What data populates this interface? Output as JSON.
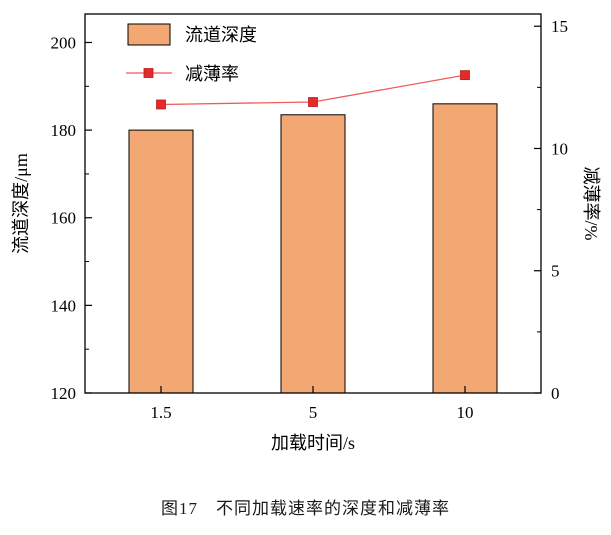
{
  "figure": {
    "caption": "图17　不同加载速率的深度和减薄率"
  },
  "chart_data": {
    "type": "bar",
    "title": "",
    "categories": [
      "1.5",
      "5",
      "10"
    ],
    "series": [
      {
        "name": "流道深度",
        "type": "bar",
        "axis": "left",
        "values": [
          180,
          183.5,
          186
        ],
        "fill": "#F3A873",
        "stroke": "#000000"
      },
      {
        "name": "减薄率",
        "type": "line",
        "axis": "right",
        "values": [
          11.8,
          11.9,
          13.0
        ],
        "line_color": "#F15B5B",
        "marker": "square",
        "marker_color": "#E42A2A",
        "marker_edge": "#B51F1F"
      }
    ],
    "xlabel": "加载时间/s",
    "ylabel_left": "流道深度/μm",
    "ylabel_right": "减薄率/%",
    "ylim_left": [
      120,
      206.5
    ],
    "ylim_right": [
      0,
      15.5
    ],
    "yticks_left": [
      "120",
      "140",
      "160",
      "180",
      "200"
    ],
    "yticks_minor_left": [
      130,
      150,
      170,
      190
    ],
    "yticks_right": [
      "0",
      "5",
      "10",
      "15"
    ],
    "yticks_minor_right": [
      2.5,
      7.5,
      12.5
    ],
    "grid": false,
    "legend": [
      "流道深度",
      "减薄率"
    ],
    "legend_position": "top-left-inside"
  }
}
